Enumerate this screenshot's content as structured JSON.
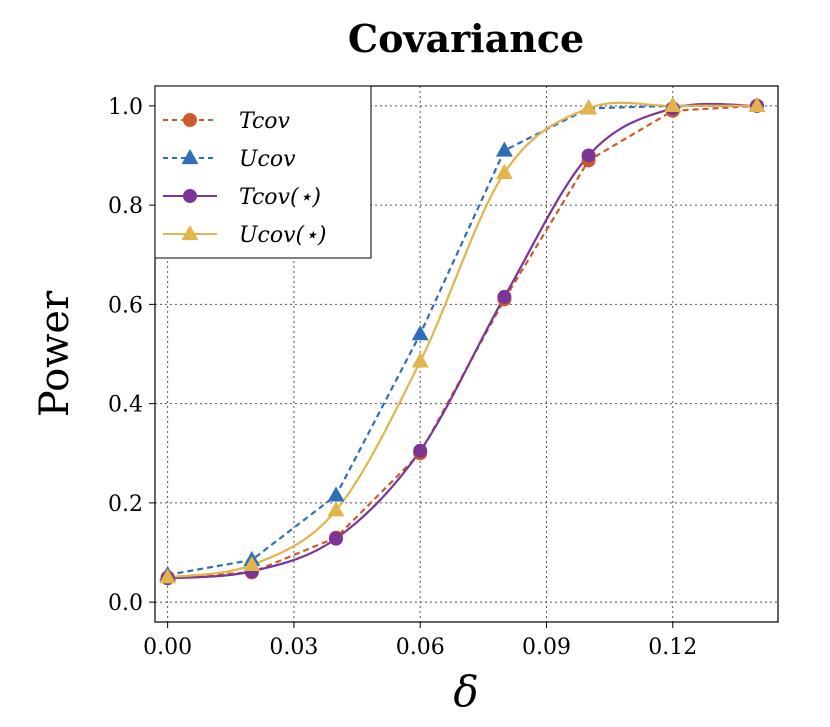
{
  "chart_data": {
    "type": "line",
    "title": "Covariance",
    "xlabel": "δ",
    "ylabel": "Power",
    "xlim": [
      -0.003,
      0.145
    ],
    "ylim": [
      -0.04,
      1.04
    ],
    "xticks": [
      0.0,
      0.03,
      0.06,
      0.09,
      0.12
    ],
    "xtick_labels": [
      "0.00",
      "0.03",
      "0.06",
      "0.09",
      "0.12"
    ],
    "yticks": [
      0.0,
      0.2,
      0.4,
      0.6,
      0.8,
      1.0
    ],
    "ytick_labels": [
      "0.0",
      "0.2",
      "0.4",
      "0.6",
      "0.8",
      "1.0"
    ],
    "grid": true,
    "legend_position": "top-left",
    "x": [
      0.0,
      0.02,
      0.04,
      0.06,
      0.08,
      0.1,
      0.12,
      0.14
    ],
    "series": [
      {
        "name": "T_cov",
        "legend_label": "Tcov",
        "color": "#cc5a2a",
        "linestyle": "dashed",
        "marker": "circle",
        "smooth": false,
        "values": [
          0.05,
          0.06,
          0.13,
          0.3,
          0.61,
          0.89,
          0.99,
          1.0
        ]
      },
      {
        "name": "U_cov",
        "legend_label": "Ucov",
        "color": "#2f6fb8",
        "linestyle": "dashed",
        "marker": "triangle",
        "smooth": false,
        "values": [
          0.055,
          0.085,
          0.215,
          0.54,
          0.91,
          0.995,
          1.0,
          1.0
        ]
      },
      {
        "name": "T_cov(★)",
        "legend_label": "Tcov(⋆)",
        "color": "#7b3596",
        "linestyle": "solid",
        "marker": "circle",
        "smooth": true,
        "values": [
          0.048,
          0.062,
          0.128,
          0.305,
          0.615,
          0.9,
          0.995,
          1.0
        ]
      },
      {
        "name": "U_cov(★)",
        "legend_label": "Ucov(⋆)",
        "color": "#e3b44a",
        "linestyle": "solid",
        "marker": "triangle",
        "smooth": true,
        "values": [
          0.05,
          0.075,
          0.185,
          0.485,
          0.865,
          0.995,
          1.0,
          1.0
        ]
      }
    ]
  }
}
